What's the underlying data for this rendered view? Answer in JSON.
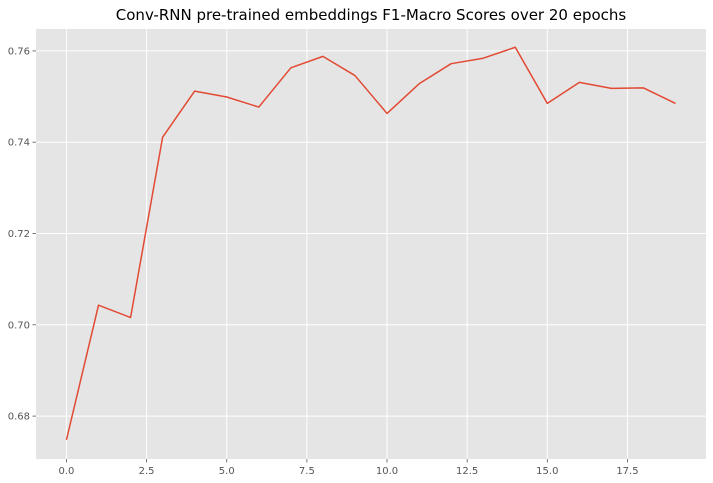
{
  "chart_data": {
    "type": "line",
    "title": "Conv-RNN pre-trained embeddings F1-Macro Scores over 20 epochs",
    "xlabel": "",
    "ylabel": "",
    "xlim": [
      -0.95,
      19.95
    ],
    "ylim": [
      0.6706,
      0.7648
    ],
    "x_ticks": [
      0.0,
      2.5,
      5.0,
      7.5,
      10.0,
      12.5,
      15.0,
      17.5
    ],
    "x_tick_labels": [
      "0.0",
      "2.5",
      "5.0",
      "7.5",
      "10.0",
      "12.5",
      "15.0",
      "17.5"
    ],
    "y_ticks": [
      0.68,
      0.7,
      0.72,
      0.74,
      0.76
    ],
    "y_tick_labels": [
      "0.68",
      "0.70",
      "0.72",
      "0.74",
      "0.76"
    ],
    "grid": true,
    "background_color": "#e5e5e5",
    "grid_color": "#ffffff",
    "series": [
      {
        "color": "#e24a33",
        "x": [
          0,
          1,
          2,
          3,
          4,
          5,
          6,
          7,
          8,
          9,
          10,
          11,
          12,
          13,
          14,
          15,
          16,
          17,
          18,
          19
        ],
        "values": [
          0.6748,
          0.7043,
          0.7016,
          0.7411,
          0.7512,
          0.7499,
          0.7477,
          0.7563,
          0.7588,
          0.7546,
          0.7463,
          0.7528,
          0.7572,
          0.7584,
          0.7608,
          0.7485,
          0.7531,
          0.7518,
          0.7519,
          0.7485
        ]
      }
    ]
  }
}
